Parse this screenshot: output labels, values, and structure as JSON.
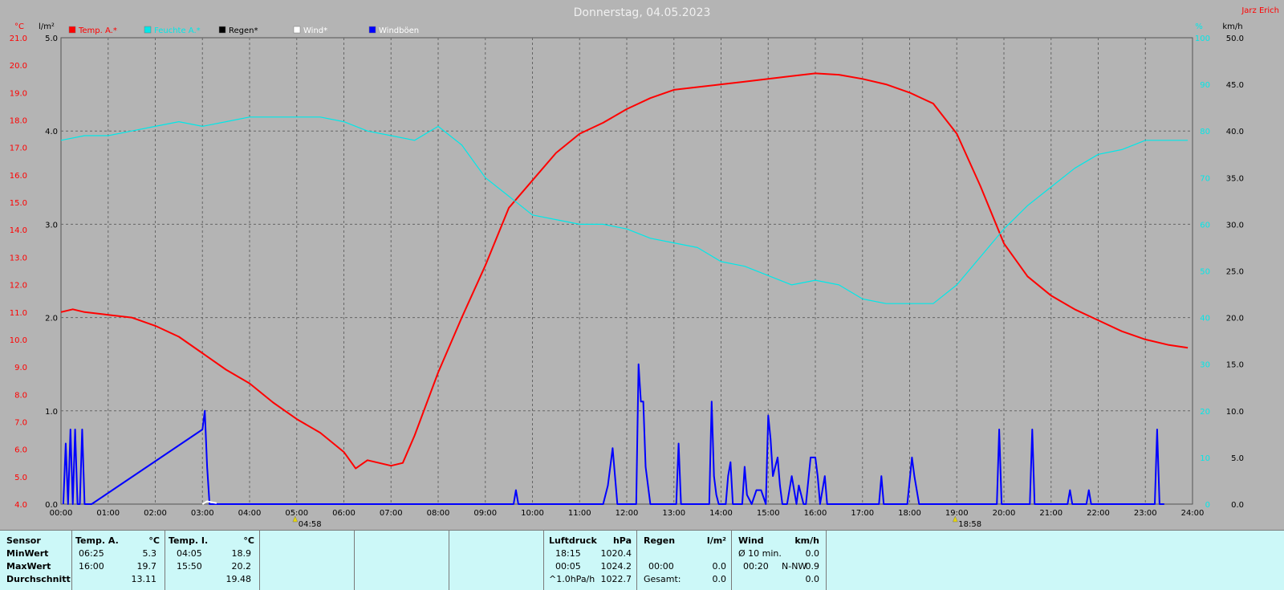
{
  "title": "Donnerstag, 04.05.2023",
  "station": "Jarz Erich",
  "colors": {
    "temp": "#ff0000",
    "humidity": "#00e8e8",
    "rain": "#000000",
    "wind": "#ffffff",
    "gusts": "#0000ff",
    "bg": "#b4b4b4",
    "grid": "#666666"
  },
  "legend": [
    {
      "label": "Temp. A.*",
      "color": "#ff0000"
    },
    {
      "label": "Feuchte A.*",
      "color": "#00e8e8"
    },
    {
      "label": "Regen*",
      "color": "#000000"
    },
    {
      "label": "Wind*",
      "color": "#ffffff"
    },
    {
      "label": "Windböen",
      "color": "#0000ff"
    }
  ],
  "sun": {
    "rise": "04:58",
    "set": "18:58"
  },
  "chart_data": {
    "type": "line",
    "title": "Donnerstag, 04.05.2023",
    "grid": true,
    "x_ticks": [
      "00:00",
      "01:00",
      "02:00",
      "03:00",
      "04:00",
      "05:00",
      "06:00",
      "07:00",
      "08:00",
      "09:00",
      "10:00",
      "11:00",
      "12:00",
      "13:00",
      "14:00",
      "15:00",
      "16:00",
      "17:00",
      "18:00",
      "19:00",
      "20:00",
      "21:00",
      "22:00",
      "23:00",
      "24:00"
    ],
    "axes": {
      "temp": {
        "unit": "°C",
        "ticks": [
          "4.0",
          "5.0",
          "6.0",
          "7.0",
          "8.0",
          "9.0",
          "10.0",
          "11.0",
          "12.0",
          "13.0",
          "14.0",
          "15.0",
          "16.0",
          "17.0",
          "18.0",
          "19.0",
          "20.0",
          "21.0"
        ],
        "range": [
          4,
          21
        ]
      },
      "rain": {
        "unit": "l/m²",
        "ticks": [
          "0.0",
          "1.0",
          "2.0",
          "3.0",
          "4.0",
          "5.0"
        ],
        "range": [
          0,
          5
        ]
      },
      "humidity": {
        "unit": "%",
        "ticks": [
          "0",
          "10",
          "20",
          "30",
          "40",
          "50",
          "60",
          "70",
          "80",
          "90",
          "100"
        ],
        "range": [
          0,
          100
        ]
      },
      "wind": {
        "unit": "km/h",
        "ticks": [
          "0.0",
          "5.0",
          "10.0",
          "15.0",
          "20.0",
          "25.0",
          "30.0",
          "35.0",
          "40.0",
          "45.0",
          "50.0"
        ],
        "range": [
          0,
          50
        ]
      }
    },
    "series": [
      {
        "name": "Temp. A.*",
        "axis": "temp",
        "color": "#ff0000",
        "x": [
          0,
          0.25,
          0.5,
          1,
          1.5,
          2,
          2.5,
          3,
          3.5,
          4,
          4.5,
          5,
          5.5,
          6,
          6.25,
          6.5,
          7,
          7.25,
          7.5,
          8,
          8.5,
          9,
          9.5,
          10,
          10.5,
          11,
          11.5,
          12,
          12.5,
          13,
          13.5,
          14,
          14.5,
          15,
          15.5,
          16,
          16.5,
          17,
          17.5,
          18,
          18.5,
          19,
          19.5,
          20,
          20.5,
          21,
          21.5,
          22,
          22.5,
          23,
          23.5,
          23.9
        ],
        "values": [
          11.0,
          11.1,
          11.0,
          10.9,
          10.8,
          10.5,
          10.1,
          9.5,
          8.9,
          8.4,
          7.7,
          7.1,
          6.6,
          5.9,
          5.3,
          5.6,
          5.4,
          5.5,
          6.5,
          8.8,
          10.8,
          12.7,
          14.8,
          15.8,
          16.8,
          17.5,
          17.9,
          18.4,
          18.8,
          19.1,
          19.2,
          19.3,
          19.4,
          19.5,
          19.6,
          19.7,
          19.65,
          19.5,
          19.3,
          19.0,
          18.6,
          17.5,
          15.6,
          13.5,
          12.3,
          11.6,
          11.1,
          10.7,
          10.3,
          10.0,
          9.8,
          9.7
        ]
      },
      {
        "name": "Feuchte A.*",
        "axis": "humidity",
        "color": "#00e8e8",
        "x": [
          0,
          0.5,
          1,
          1.5,
          2,
          2.5,
          3,
          3.5,
          4,
          4.5,
          5,
          5.5,
          6,
          6.5,
          7,
          7.5,
          8,
          8.5,
          9,
          9.5,
          10,
          10.5,
          11,
          11.5,
          12,
          12.5,
          13,
          13.5,
          14,
          14.5,
          15,
          15.5,
          16,
          16.5,
          17,
          17.5,
          18,
          18.5,
          19,
          19.5,
          20,
          20.5,
          21,
          21.5,
          22,
          22.5,
          23,
          23.5,
          23.9
        ],
        "values": [
          78,
          79,
          79,
          80,
          81,
          82,
          81,
          82,
          83,
          83,
          83,
          83,
          82,
          80,
          79,
          78,
          81,
          77,
          70,
          66,
          62,
          61,
          60,
          60,
          59,
          57,
          56,
          55,
          52,
          51,
          49,
          47,
          48,
          47,
          44,
          43,
          43,
          43,
          47,
          53,
          59,
          64,
          68,
          72,
          75,
          76,
          78,
          78,
          78
        ]
      },
      {
        "name": "Windböen",
        "axis": "wind",
        "color": "#0000ff",
        "x": [
          0.05,
          0.1,
          0.15,
          0.2,
          0.25,
          0.3,
          0.35,
          0.4,
          0.45,
          0.5,
          0.55,
          0.6,
          0.65,
          3.0,
          3.05,
          3.1,
          3.15,
          3.2,
          9.6,
          9.65,
          9.7,
          11.5,
          11.6,
          11.7,
          11.8,
          12.2,
          12.25,
          12.3,
          12.35,
          12.4,
          12.5,
          12.6,
          12.65,
          12.75,
          13.05,
          13.1,
          13.15,
          13.75,
          13.8,
          13.85,
          13.9,
          13.95,
          14.1,
          14.15,
          14.2,
          14.25,
          14.45,
          14.5,
          14.55,
          14.65,
          14.75,
          14.85,
          14.95,
          15.0,
          15.05,
          15.1,
          15.2,
          15.25,
          15.3,
          15.4,
          15.5,
          15.6,
          15.65,
          15.75,
          15.8,
          15.9,
          16.0,
          16.05,
          16.1,
          16.2,
          16.25,
          16.3,
          17.35,
          17.4,
          17.45,
          17.95,
          18.05,
          18.1,
          18.2,
          18.3,
          19.85,
          19.9,
          19.95,
          20.55,
          20.6,
          20.65,
          21.35,
          21.4,
          21.45,
          21.75,
          21.8,
          21.85,
          23.2,
          23.25,
          23.3,
          23.35,
          23.4
        ],
        "values": [
          0,
          6.5,
          0,
          8,
          0,
          8,
          0,
          0,
          8,
          0,
          0,
          0,
          0,
          8,
          10,
          4,
          0,
          0,
          0,
          1.5,
          0,
          0,
          2,
          6,
          0,
          0,
          15,
          11,
          11,
          4,
          0,
          0,
          0,
          0,
          0,
          6.5,
          0,
          0,
          11,
          3,
          1,
          0,
          0,
          3,
          4.5,
          0,
          0,
          4,
          1,
          0,
          1.5,
          1.5,
          0,
          9.5,
          7,
          3,
          5,
          2,
          0,
          0,
          3,
          0,
          2,
          0,
          0,
          5,
          5,
          3,
          0,
          3,
          0,
          0,
          0,
          3,
          0,
          0,
          5,
          3,
          0,
          0,
          0,
          8,
          0,
          0,
          8,
          0,
          0,
          1.5,
          0,
          0,
          1.5,
          0,
          0,
          8,
          0,
          0,
          0
        ]
      },
      {
        "name": "Wind*",
        "axis": "wind",
        "color": "#ffffff",
        "x": [
          3.0,
          3.1,
          3.3
        ],
        "values": [
          0,
          0.3,
          0.1
        ]
      }
    ]
  },
  "footer": {
    "sensor": {
      "header": "Sensor",
      "rows": [
        "MinWert",
        "MaxWert",
        "Durchschnitt"
      ]
    },
    "tempA": {
      "header": "Temp. A.",
      "unit": "°C",
      "rows": [
        [
          "06:25",
          "5.3"
        ],
        [
          "16:00",
          "19.7"
        ],
        [
          "",
          "13.11"
        ]
      ]
    },
    "tempI": {
      "header": "Temp. I.",
      "unit": "°C",
      "rows": [
        [
          "04:05",
          "18.9"
        ],
        [
          "15:50",
          "20.2"
        ],
        [
          "",
          "19.48"
        ]
      ]
    },
    "pressure": {
      "header": "Luftdruck",
      "unit": "hPa",
      "rows": [
        [
          "18:15",
          "1020.4"
        ],
        [
          "00:05",
          "1024.2"
        ],
        [
          "^1.0hPa/h",
          "1022.7"
        ]
      ]
    },
    "rain": {
      "header": "Regen",
      "unit": "l/m²",
      "rows": [
        [
          "",
          ""
        ],
        [
          "00:00",
          "0.0"
        ],
        [
          "Gesamt:",
          "0.0"
        ]
      ]
    },
    "wind": {
      "header": "Wind",
      "unit": "km/h",
      "rows": [
        [
          "Ø 10 min.",
          "",
          "0.0"
        ],
        [
          "00:20",
          "N-NW",
          "0.9"
        ],
        [
          "",
          "",
          "0.0"
        ]
      ]
    }
  }
}
